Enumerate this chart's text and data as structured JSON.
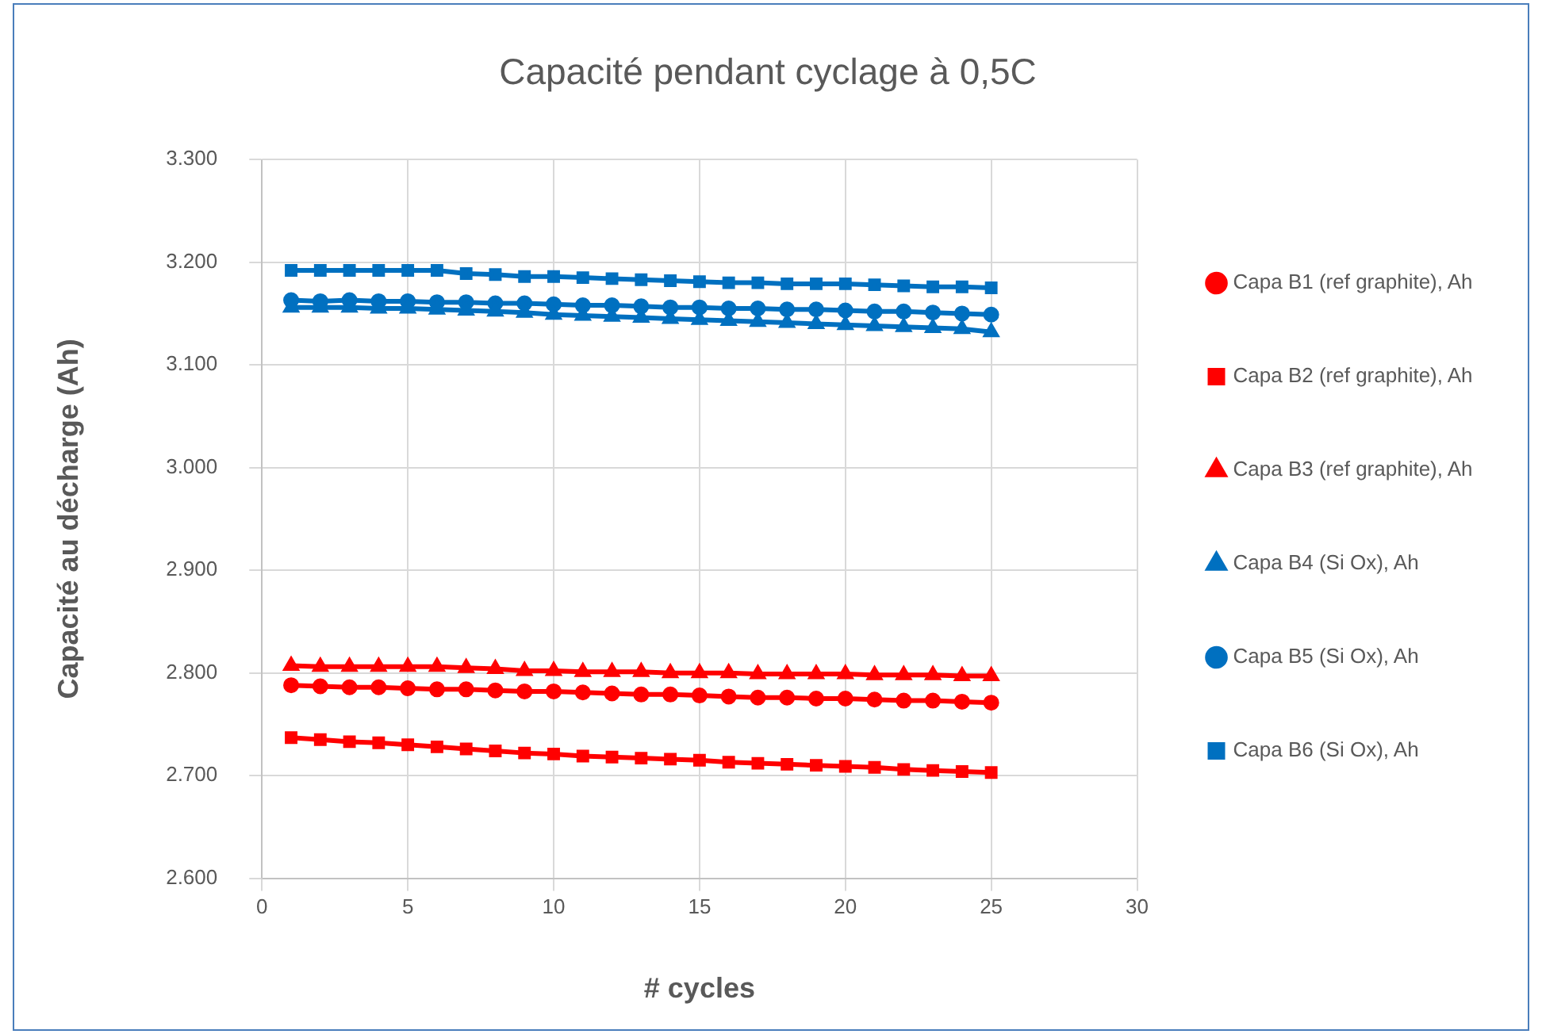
{
  "chart_data": {
    "type": "line",
    "title": "Capacité pendant cyclage à 0,5C",
    "xlabel": "# cycles",
    "ylabel": "Capacité au décharge (Ah)",
    "x": [
      1,
      2,
      3,
      4,
      5,
      6,
      7,
      8,
      9,
      10,
      11,
      12,
      13,
      14,
      15,
      16,
      17,
      18,
      19,
      20,
      21,
      22,
      23,
      24,
      25
    ],
    "xlim": [
      0,
      30
    ],
    "xticks": [
      0,
      5,
      10,
      15,
      20,
      25,
      30
    ],
    "ylim": [
      2.6,
      3.3
    ],
    "yticks": [
      {
        "value": 2.6,
        "label": "2.600"
      },
      {
        "value": 2.7,
        "label": "2.700"
      },
      {
        "value": 2.8,
        "label": "2.800"
      },
      {
        "value": 2.9,
        "label": "2.900"
      },
      {
        "value": 3.0,
        "label": "3.000"
      },
      {
        "value": 3.1,
        "label": "3.100"
      },
      {
        "value": 3.2,
        "label": "3.200"
      },
      {
        "value": 3.3,
        "label": "3.300"
      }
    ],
    "grid": true,
    "legend": "right",
    "line_style": "solid",
    "series": [
      {
        "name": "Capa B1 (ref graphite), Ah",
        "color": "#ff0000",
        "marker": "circle",
        "values": [
          2.788,
          2.787,
          2.786,
          2.786,
          2.785,
          2.784,
          2.784,
          2.783,
          2.782,
          2.782,
          2.781,
          2.78,
          2.779,
          2.779,
          2.778,
          2.777,
          2.776,
          2.776,
          2.775,
          2.775,
          2.774,
          2.773,
          2.773,
          2.772,
          2.771
        ]
      },
      {
        "name": "Capa B2 (ref graphite), Ah",
        "color": "#ff0000",
        "marker": "square",
        "values": [
          2.737,
          2.735,
          2.733,
          2.732,
          2.73,
          2.728,
          2.726,
          2.724,
          2.722,
          2.721,
          2.719,
          2.718,
          2.717,
          2.716,
          2.715,
          2.713,
          2.712,
          2.711,
          2.71,
          2.709,
          2.708,
          2.706,
          2.705,
          2.704,
          2.703
        ]
      },
      {
        "name": "Capa B3 (ref graphite), Ah",
        "color": "#ff0000",
        "marker": "triangle",
        "values": [
          2.807,
          2.806,
          2.806,
          2.806,
          2.806,
          2.806,
          2.805,
          2.804,
          2.802,
          2.802,
          2.801,
          2.801,
          2.801,
          2.8,
          2.8,
          2.8,
          2.799,
          2.799,
          2.799,
          2.799,
          2.798,
          2.798,
          2.798,
          2.797,
          2.797
        ]
      },
      {
        "name": "Capa B4 (Si Ox), Ah",
        "color": "#0070c0",
        "marker": "triangle",
        "values": [
          3.156,
          3.156,
          3.156,
          3.155,
          3.155,
          3.154,
          3.153,
          3.152,
          3.151,
          3.149,
          3.148,
          3.147,
          3.146,
          3.145,
          3.144,
          3.143,
          3.142,
          3.141,
          3.14,
          3.139,
          3.138,
          3.137,
          3.136,
          3.135,
          3.132
        ]
      },
      {
        "name": "Capa B5 (Si Ox), Ah",
        "color": "#0070c0",
        "marker": "circle",
        "values": [
          3.163,
          3.162,
          3.163,
          3.162,
          3.162,
          3.161,
          3.161,
          3.16,
          3.16,
          3.159,
          3.158,
          3.158,
          3.157,
          3.156,
          3.156,
          3.155,
          3.155,
          3.154,
          3.154,
          3.153,
          3.152,
          3.152,
          3.151,
          3.15,
          3.149
        ]
      },
      {
        "name": "Capa B6 (Si Ox), Ah",
        "color": "#0070c0",
        "marker": "square",
        "values": [
          3.192,
          3.192,
          3.192,
          3.192,
          3.192,
          3.192,
          3.189,
          3.188,
          3.186,
          3.186,
          3.185,
          3.184,
          3.183,
          3.182,
          3.181,
          3.18,
          3.18,
          3.179,
          3.179,
          3.179,
          3.178,
          3.177,
          3.176,
          3.176,
          3.175
        ]
      }
    ]
  }
}
